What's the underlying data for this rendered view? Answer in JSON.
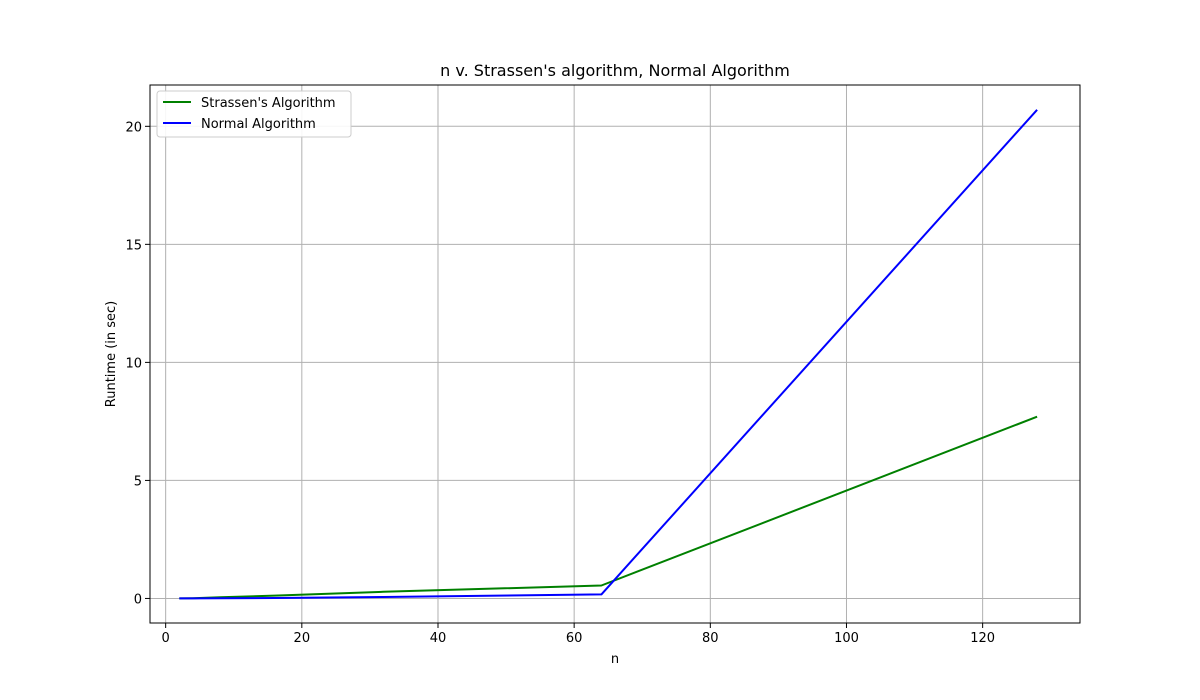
{
  "chart_data": {
    "type": "line",
    "title": "n v. Strassen's algorithm, Normal Algorithm",
    "xlabel": "n",
    "ylabel": "Runtime (in sec)",
    "xlim": [
      -2.3,
      134.3
    ],
    "ylim": [
      -1.04,
      21.75
    ],
    "xticks": [
      0,
      20,
      40,
      60,
      80,
      100,
      120
    ],
    "yticks": [
      0,
      5,
      10,
      15,
      20
    ],
    "grid": true,
    "legend_position": "upper-left",
    "x": [
      2,
      4,
      8,
      16,
      32,
      64,
      128
    ],
    "series": [
      {
        "name": "Strassen's Algorithm",
        "color": "#008000",
        "values": [
          0.0,
          0.01,
          0.05,
          0.12,
          0.28,
          0.55,
          7.7
        ]
      },
      {
        "name": "Normal Algorithm",
        "color": "#0000ff",
        "values": [
          0.0,
          0.0,
          0.01,
          0.02,
          0.06,
          0.17,
          20.7
        ]
      }
    ]
  }
}
